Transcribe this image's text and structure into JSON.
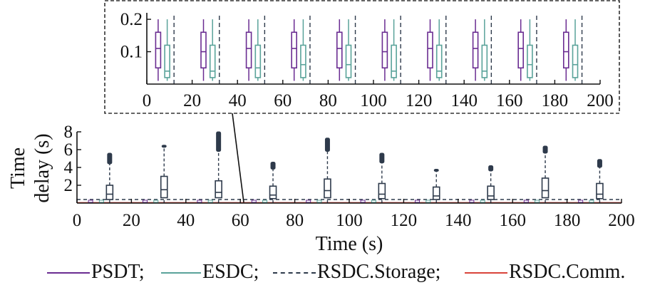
{
  "chart_data": [
    {
      "type": "box",
      "panel": "main",
      "xlabel": "Time (s)",
      "ylabel": "Time delay (s)",
      "xlim": [
        0,
        200
      ],
      "ylim": [
        0,
        8
      ],
      "xticks": [
        "0",
        "20",
        "40",
        "60",
        "80",
        "100",
        "120",
        "140",
        "160",
        "180",
        "200"
      ],
      "yticks": [
        "2",
        "4",
        "6",
        "8"
      ],
      "series": [
        {
          "name": "RSDC.Storage",
          "style": "dashed",
          "x": [
            12,
            32,
            52,
            72,
            92,
            112,
            132,
            152,
            172,
            192
          ],
          "q1": [
            0.4,
            0.6,
            0.6,
            0.5,
            0.6,
            0.5,
            0.4,
            0.4,
            0.6,
            0.5
          ],
          "median": [
            1.0,
            1.5,
            1.2,
            0.9,
            1.4,
            1.0,
            0.8,
            0.8,
            1.4,
            1.0
          ],
          "q3": [
            2.0,
            3.0,
            2.5,
            1.9,
            2.7,
            2.2,
            1.8,
            1.9,
            2.8,
            2.2
          ],
          "whisker_high": [
            4.4,
            6.3,
            5.8,
            3.8,
            5.8,
            4.5,
            3.7,
            3.6,
            5.6,
            4.0
          ],
          "outlier_max": [
            5.6,
            6.5,
            8.0,
            4.6,
            7.3,
            5.6,
            3.8,
            4.2,
            6.4,
            4.9
          ]
        },
        {
          "name": "PSDT",
          "x": [
            5,
            25,
            45,
            65,
            85,
            105,
            125,
            145,
            165,
            185
          ],
          "whisker_low": [
            0.01,
            0.01,
            0.01,
            0.01,
            0.01,
            0.01,
            0.01,
            0.01,
            0.01,
            0.01
          ],
          "q1": [
            0.05,
            0.05,
            0.05,
            0.05,
            0.05,
            0.05,
            0.05,
            0.05,
            0.05,
            0.05
          ],
          "median": [
            0.11,
            0.1,
            0.11,
            0.11,
            0.11,
            0.1,
            0.11,
            0.11,
            0.11,
            0.1
          ],
          "q3": [
            0.16,
            0.16,
            0.16,
            0.16,
            0.16,
            0.16,
            0.16,
            0.16,
            0.16,
            0.16
          ],
          "whisker_high": [
            0.2,
            0.2,
            0.2,
            0.2,
            0.2,
            0.2,
            0.2,
            0.2,
            0.2,
            0.2
          ]
        },
        {
          "name": "ESDC",
          "x": [
            9,
            29,
            49,
            69,
            89,
            109,
            129,
            149,
            169,
            189
          ],
          "whisker_low": [
            0.01,
            0.01,
            0.01,
            0.01,
            0.01,
            0.01,
            0.01,
            0.01,
            0.01,
            0.01
          ],
          "q1": [
            0.02,
            0.02,
            0.02,
            0.02,
            0.02,
            0.02,
            0.02,
            0.02,
            0.02,
            0.02
          ],
          "median": [
            0.04,
            0.04,
            0.05,
            0.06,
            0.06,
            0.04,
            0.04,
            0.04,
            0.06,
            0.06
          ],
          "q3": [
            0.12,
            0.12,
            0.12,
            0.12,
            0.12,
            0.12,
            0.12,
            0.12,
            0.12,
            0.12
          ],
          "whisker_high": [
            0.2,
            0.2,
            0.2,
            0.2,
            0.2,
            0.2,
            0.2,
            0.2,
            0.2,
            0.2
          ]
        },
        {
          "name": "RSDC.Comm.",
          "x": [
            0,
            200
          ],
          "values": [
            0.05,
            0.05
          ]
        }
      ]
    },
    {
      "type": "box",
      "panel": "inset",
      "xlim": [
        0,
        200
      ],
      "ylim": [
        0,
        0.22
      ],
      "xticks": [
        "0",
        "20",
        "40",
        "60",
        "80",
        "100",
        "120",
        "140",
        "160",
        "180",
        "200"
      ],
      "yticks": [
        "0.1",
        "0.2"
      ],
      "rsdc_storage_dashed_x": [
        12,
        32,
        52,
        72,
        92,
        112,
        132,
        152,
        172,
        192
      ]
    }
  ],
  "legend": [
    {
      "label": "PSDT;",
      "color": "#6a2c91",
      "style": "solid"
    },
    {
      "label": "ESDC;",
      "color": "#5aa39a",
      "style": "solid"
    },
    {
      "label": "RSDC.Storage;",
      "color": "#2e3a4b",
      "style": "dashed"
    },
    {
      "label": "RSDC.Comm.",
      "color": "#d9443a",
      "style": "solid"
    }
  ],
  "colors": {
    "psdt": "#6a2c91",
    "esdc": "#5aa39a",
    "storage": "#2e3a4b",
    "comm": "#d9443a",
    "axis": "#111111",
    "inset_border": "#333333"
  }
}
